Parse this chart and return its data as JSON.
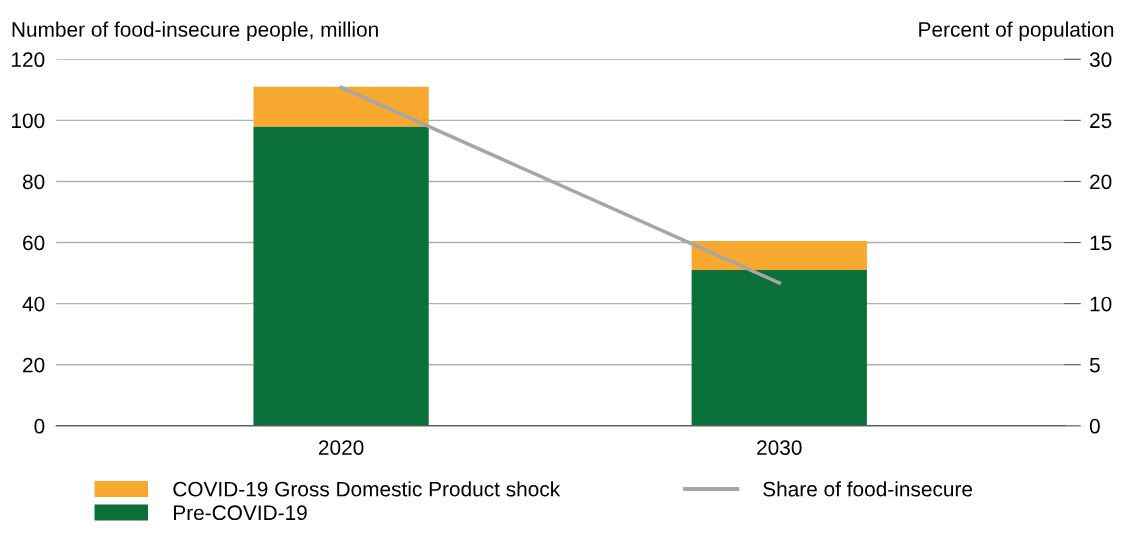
{
  "chart_data": {
    "type": "bar",
    "stacked": true,
    "categories": [
      "2020",
      "2030"
    ],
    "series": [
      {
        "name": "Pre-COVID-19",
        "color": "#0b703a",
        "values": [
          98,
          51
        ]
      },
      {
        "name": "COVID-19 Gross Domestic Product shock",
        "color": "#f7a82f",
        "values": [
          13,
          9.5
        ]
      },
      {
        "name": "Share of food-insecure",
        "type": "line",
        "axis": "y2",
        "color": "#a6a6a6",
        "values": [
          27.7,
          11.7
        ]
      }
    ],
    "ylabel": "Number of food-insecure people, million",
    "y2label": "Percent of population",
    "ylim": [
      0,
      120
    ],
    "yticks": [
      0,
      20,
      40,
      60,
      80,
      100,
      120
    ],
    "y2lim": [
      0,
      30
    ],
    "y2ticks": [
      0,
      5,
      10,
      15,
      20,
      25,
      30
    ],
    "grid": "y",
    "legend": "bottom"
  }
}
